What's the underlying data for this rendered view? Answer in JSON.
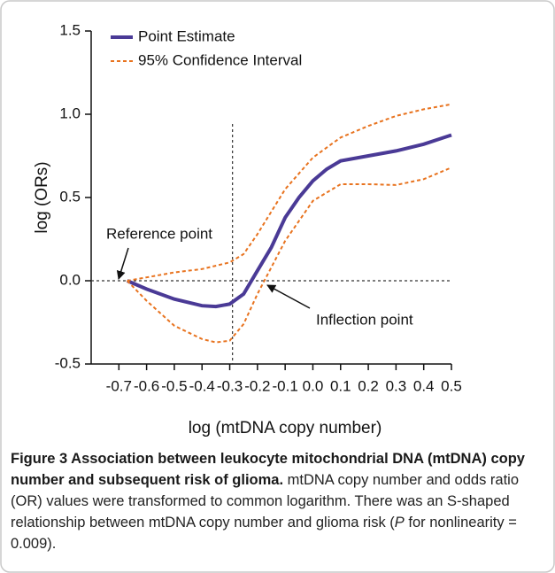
{
  "chart_data": {
    "type": "line",
    "x_label": "log (mtDNA copy number)",
    "y_label": "log (ORs)",
    "xlim": [
      -0.8,
      0.5
    ],
    "ylim": [
      -0.5,
      1.5
    ],
    "xticks": [
      -0.7,
      -0.6,
      -0.5,
      -0.4,
      -0.3,
      -0.2,
      -0.1,
      {
        "value": 0,
        "label": "0.0"
      },
      0.1,
      0.2,
      0.3,
      0.4,
      0.5
    ],
    "yticks": [
      -0.5,
      {
        "value": 0,
        "label": "0.0"
      },
      0.5,
      {
        "value": 1,
        "label": "1.0"
      },
      1.5
    ],
    "vline": -0.29,
    "hline": 0,
    "series": [
      {
        "name": "Point Estimate",
        "color": "#4a3a96",
        "style": "solid",
        "x": [
          -0.67,
          -0.6,
          -0.5,
          -0.4,
          -0.35,
          -0.3,
          -0.25,
          -0.2,
          -0.15,
          -0.1,
          -0.05,
          0.0,
          0.05,
          0.1,
          0.2,
          0.3,
          0.4,
          0.5
        ],
        "values": [
          0,
          -0.05,
          -0.11,
          -0.15,
          -0.155,
          -0.14,
          -0.08,
          0.06,
          0.2,
          0.38,
          0.5,
          0.6,
          0.67,
          0.72,
          0.75,
          0.78,
          0.82,
          0.875
        ]
      },
      {
        "name": "95% Confidence Interval",
        "color": "#e8731f",
        "style": "dashed",
        "x": [
          -0.67,
          -0.6,
          -0.5,
          -0.4,
          -0.3,
          -0.25,
          -0.2,
          -0.1,
          0.0,
          0.1,
          0.2,
          0.3,
          0.4,
          0.5
        ],
        "values": [
          0,
          0.02,
          0.05,
          0.07,
          0.11,
          0.16,
          0.28,
          0.55,
          0.74,
          0.86,
          0.93,
          0.99,
          1.03,
          1.06
        ]
      },
      {
        "color": "#e8731f",
        "style": "dashed",
        "x": [
          -0.67,
          -0.6,
          -0.5,
          -0.4,
          -0.35,
          -0.3,
          -0.25,
          -0.2,
          -0.1,
          0.0,
          0.1,
          0.2,
          0.3,
          0.4,
          0.5
        ],
        "values": [
          0,
          -0.12,
          -0.27,
          -0.35,
          -0.37,
          -0.36,
          -0.26,
          -0.08,
          0.24,
          0.48,
          0.58,
          0.58,
          0.575,
          0.61,
          0.68
        ]
      }
    ],
    "annotations": [
      "Reference point",
      "Inflection point"
    ]
  },
  "caption": {
    "title": "Figure 3 Association between leukocyte mitochondrial DNA (mtDNA) copy number and subsequent risk of glioma.",
    "text_before": "mtDNA copy number and odds ratio (OR) values were transformed to common logarithm. There was an S-shaped relationship between mtDNA copy number and glioma risk (",
    "italic": "P",
    "text_after": " for nonlinearity = 0.009)."
  }
}
